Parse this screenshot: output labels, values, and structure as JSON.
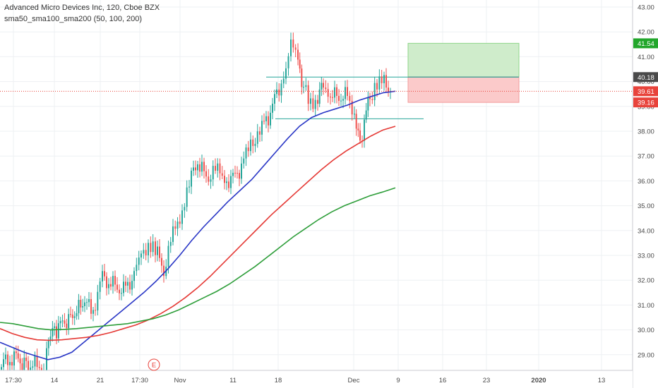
{
  "legend": {
    "title": "Advanced Micro Devices Inc, 120, Cboe BZX",
    "indicator": "sma50_sma100_sma200 (50, 100, 200)"
  },
  "chart_data": {
    "type": "candlestick",
    "title": "Advanced Micro Devices Inc, 120, Cboe BZX",
    "ylim": [
      28.2,
      43.2
    ],
    "y_ticks": [
      29,
      30,
      31,
      32,
      33,
      34,
      35,
      36,
      37,
      38,
      39,
      40,
      41,
      42,
      43
    ],
    "x_ticks": [
      "17:30",
      "14",
      "21",
      "17:30",
      "Nov",
      "11",
      "18",
      "Dec",
      "9",
      "16",
      "23",
      "2020",
      "13"
    ],
    "price_tags": [
      {
        "name": "target",
        "value": "41.54",
        "color": "#22a62b"
      },
      {
        "name": "entry",
        "value": "40.18",
        "color": "#4a4a4a"
      },
      {
        "name": "last",
        "value": "39.61",
        "color": "#e8433b"
      },
      {
        "name": "stop",
        "value": "39.16",
        "color": "#e8433b"
      }
    ],
    "earnings_marker": "E",
    "horizontal_levels": [
      {
        "name": "resistance",
        "value": 40.18,
        "color": "#26a69a"
      },
      {
        "name": "support",
        "value": 38.5,
        "color": "#26a69a"
      }
    ],
    "position": {
      "entry": 40.18,
      "target": 41.54,
      "stop": 39.16
    },
    "colors": {
      "up": "#26a69a",
      "down": "#ef5350",
      "sma50": "#2a37c6",
      "sma100": "#e53935",
      "sma200": "#2e9e3a"
    },
    "series": [
      {
        "name": "sma50",
        "values": [
          29.5,
          29.3,
          29.1,
          28.95,
          28.8,
          28.9,
          29.1,
          29.5,
          29.9,
          30.3,
          30.7,
          31.1,
          31.5,
          31.95,
          32.45,
          33.0,
          33.6,
          34.15,
          34.65,
          35.15,
          35.6,
          36.05,
          36.6,
          37.15,
          37.7,
          38.2,
          38.55,
          38.75,
          38.9,
          39.05,
          39.25,
          39.4,
          39.55,
          39.61
        ]
      },
      {
        "name": "sma100",
        "values": [
          30.05,
          29.85,
          29.7,
          29.6,
          29.58,
          29.6,
          29.65,
          29.7,
          29.78,
          29.9,
          30.05,
          30.2,
          30.4,
          30.65,
          30.95,
          31.3,
          31.7,
          32.15,
          32.65,
          33.15,
          33.65,
          34.15,
          34.65,
          35.1,
          35.55,
          36.0,
          36.45,
          36.85,
          37.2,
          37.5,
          37.8,
          38.05,
          38.2
        ]
      },
      {
        "name": "sma200",
        "values": [
          30.3,
          30.25,
          30.15,
          30.05,
          30.0,
          30.02,
          30.05,
          30.1,
          30.15,
          30.2,
          30.25,
          30.35,
          30.45,
          30.6,
          30.8,
          31.05,
          31.3,
          31.55,
          31.85,
          32.2,
          32.55,
          32.95,
          33.35,
          33.75,
          34.1,
          34.45,
          34.75,
          35.0,
          35.2,
          35.4,
          35.55,
          35.72
        ]
      }
    ]
  }
}
